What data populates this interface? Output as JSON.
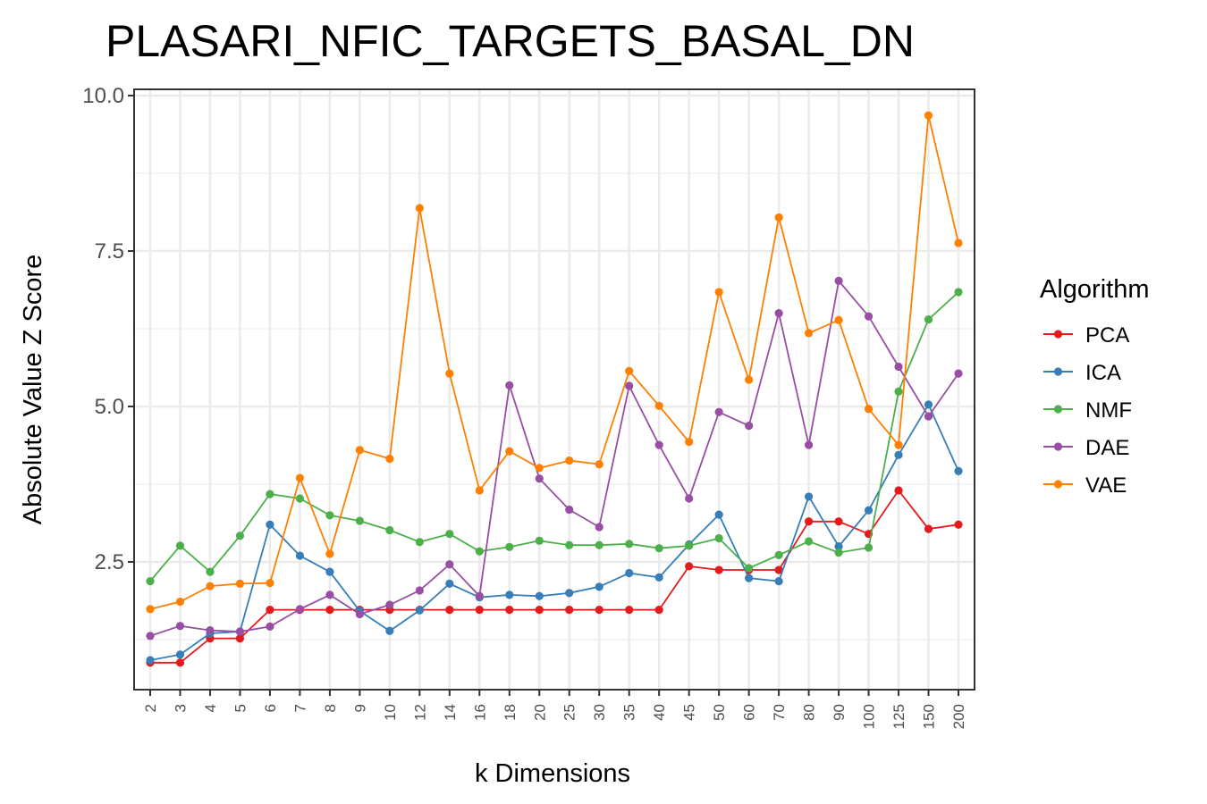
{
  "chart_data": {
    "type": "line",
    "title": "PLASARI_NFIC_TARGETS_BASAL_DN",
    "xlabel": "k Dimensions",
    "ylabel": "Absolute Value Z Score",
    "categories": [
      "2",
      "3",
      "4",
      "5",
      "6",
      "7",
      "8",
      "9",
      "10",
      "12",
      "14",
      "16",
      "18",
      "20",
      "25",
      "30",
      "35",
      "40",
      "45",
      "50",
      "60",
      "70",
      "80",
      "90",
      "100",
      "125",
      "150",
      "200"
    ],
    "yticks": [
      "2.5",
      "5.0",
      "7.5",
      "10.0"
    ],
    "ylim": [
      0.5,
      10.0
    ],
    "grid": true,
    "legend": {
      "title": "Algorithm",
      "placement": "right"
    },
    "series": [
      {
        "name": "PCA",
        "color": "#e41a1c",
        "values": [
          0.88,
          0.88,
          1.27,
          1.27,
          1.73,
          1.73,
          1.73,
          1.73,
          1.73,
          1.73,
          1.73,
          1.73,
          1.73,
          1.73,
          1.73,
          1.73,
          1.73,
          1.73,
          2.43,
          2.37,
          2.37,
          2.37,
          3.15,
          3.15,
          2.95,
          3.65,
          3.03,
          3.1
        ]
      },
      {
        "name": "ICA",
        "color": "#377eb8",
        "values": [
          0.92,
          1.01,
          1.35,
          1.38,
          3.1,
          2.6,
          2.34,
          1.71,
          1.39,
          1.72,
          2.15,
          1.93,
          1.97,
          1.95,
          2.0,
          2.1,
          2.32,
          2.25,
          2.78,
          3.26,
          2.24,
          2.19,
          3.55,
          2.75,
          3.33,
          4.22,
          5.03,
          3.96
        ]
      },
      {
        "name": "NMF",
        "color": "#4daf4a",
        "values": [
          2.19,
          2.76,
          2.34,
          2.92,
          3.59,
          3.52,
          3.25,
          3.16,
          3.01,
          2.82,
          2.95,
          2.67,
          2.74,
          2.84,
          2.77,
          2.77,
          2.79,
          2.72,
          2.76,
          2.88,
          2.4,
          2.61,
          2.83,
          2.65,
          2.73,
          5.24,
          6.4,
          6.84
        ]
      },
      {
        "name": "DAE",
        "color": "#984ea3",
        "values": [
          1.31,
          1.47,
          1.4,
          1.38,
          1.46,
          1.74,
          1.97,
          1.66,
          1.81,
          2.04,
          2.46,
          1.95,
          5.34,
          3.84,
          3.34,
          3.06,
          5.33,
          4.38,
          3.52,
          4.91,
          4.69,
          6.5,
          4.38,
          7.02,
          6.45,
          5.64,
          4.84,
          5.53
        ]
      },
      {
        "name": "VAE",
        "color": "#ff7f00",
        "values": [
          1.74,
          1.86,
          2.11,
          2.15,
          2.16,
          3.85,
          2.63,
          4.3,
          4.16,
          8.19,
          5.53,
          3.65,
          4.28,
          4.01,
          4.13,
          4.07,
          5.57,
          5.01,
          4.43,
          6.84,
          5.43,
          8.04,
          6.18,
          6.39,
          4.96,
          4.38,
          9.68,
          7.63
        ]
      }
    ]
  }
}
